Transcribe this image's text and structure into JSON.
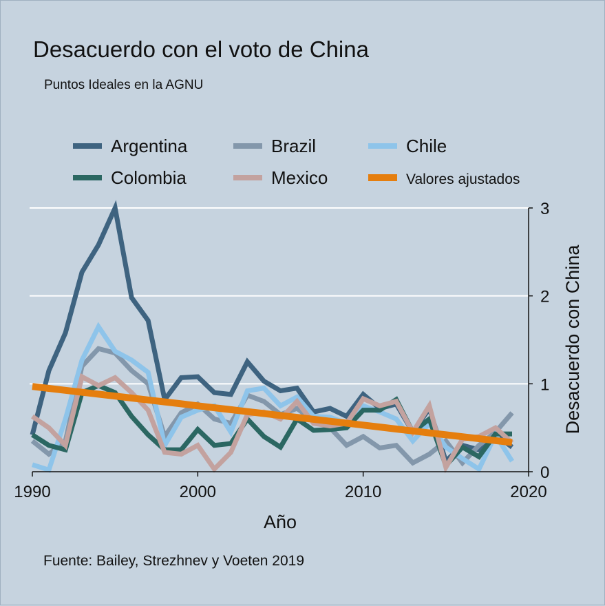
{
  "chart_data": {
    "type": "line",
    "title": "Desacuerdo con el voto de China",
    "subtitle": "Puntos Ideales en la AGNU",
    "xlabel": "Año",
    "ylabel": "Desacuerdo con China",
    "note": "Fuente: Bailey, Strezhnev y Voeten 2019",
    "xlim": [
      1990,
      2020
    ],
    "ylim": [
      0,
      3
    ],
    "x_ticks": [
      "1990",
      "2000",
      "2010",
      "2020"
    ],
    "y_ticks": [
      "0",
      "1",
      "2",
      "3"
    ],
    "grid": "horizontal",
    "legend_position": "top",
    "x": [
      1990,
      1991,
      1992,
      1993,
      1994,
      1995,
      1996,
      1997,
      1998,
      1999,
      2000,
      2001,
      2002,
      2003,
      2004,
      2005,
      2006,
      2007,
      2008,
      2009,
      2010,
      2011,
      2012,
      2013,
      2014,
      2015,
      2016,
      2017,
      2018,
      2019
    ],
    "series": [
      {
        "name": "Argentina",
        "color": "#3e6380",
        "values": [
          0.42,
          1.15,
          1.58,
          2.27,
          2.58,
          3.0,
          1.98,
          1.72,
          0.82,
          1.07,
          1.08,
          0.9,
          0.88,
          1.25,
          1.03,
          0.92,
          0.95,
          0.68,
          0.72,
          0.63,
          0.88,
          0.72,
          0.77,
          0.45,
          0.72,
          0.12,
          0.3,
          0.25,
          0.42,
          0.28
        ]
      },
      {
        "name": "Brazil",
        "color": "#8397ab",
        "values": [
          0.35,
          0.2,
          0.35,
          1.2,
          1.4,
          1.35,
          1.15,
          1.0,
          0.4,
          0.67,
          0.77,
          0.6,
          0.55,
          0.87,
          0.8,
          0.65,
          0.72,
          0.58,
          0.5,
          0.3,
          0.4,
          0.27,
          0.3,
          0.1,
          0.2,
          0.35,
          0.1,
          0.3,
          0.45,
          0.67
        ]
      },
      {
        "name": "Chile",
        "color": "#8ec4ea",
        "values": [
          0.08,
          0.02,
          0.6,
          1.27,
          1.65,
          1.37,
          1.27,
          1.13,
          0.3,
          0.62,
          0.7,
          0.75,
          0.45,
          0.92,
          0.95,
          0.75,
          0.85,
          0.63,
          0.62,
          0.55,
          0.75,
          0.68,
          0.6,
          0.35,
          0.55,
          0.28,
          0.15,
          0.03,
          0.42,
          0.12
        ]
      },
      {
        "name": "Colombia",
        "color": "#2b6762",
        "values": [
          0.42,
          0.3,
          0.25,
          0.9,
          0.98,
          0.9,
          0.63,
          0.42,
          0.25,
          0.25,
          0.48,
          0.3,
          0.32,
          0.6,
          0.4,
          0.28,
          0.6,
          0.47,
          0.48,
          0.5,
          0.7,
          0.7,
          0.82,
          0.45,
          0.6,
          0.07,
          0.28,
          0.17,
          0.43,
          0.43
        ]
      },
      {
        "name": "Mexico",
        "color": "#c3a29f",
        "values": [
          0.63,
          0.5,
          0.3,
          1.08,
          0.98,
          1.07,
          0.9,
          0.7,
          0.22,
          0.2,
          0.3,
          0.03,
          0.22,
          0.65,
          0.68,
          0.6,
          0.8,
          0.55,
          0.52,
          0.55,
          0.83,
          0.75,
          0.8,
          0.45,
          0.75,
          0.05,
          0.37,
          0.4,
          0.5,
          0.33
        ]
      },
      {
        "name": "Valores ajustados",
        "color": "#e57e0e",
        "values": [
          0.97,
          0.948,
          0.926,
          0.904,
          0.882,
          0.86,
          0.838,
          0.816,
          0.794,
          0.772,
          0.75,
          0.728,
          0.706,
          0.684,
          0.662,
          0.64,
          0.618,
          0.596,
          0.574,
          0.552,
          0.53,
          0.508,
          0.486,
          0.464,
          0.442,
          0.42,
          0.398,
          0.376,
          0.354,
          0.332
        ]
      }
    ]
  }
}
